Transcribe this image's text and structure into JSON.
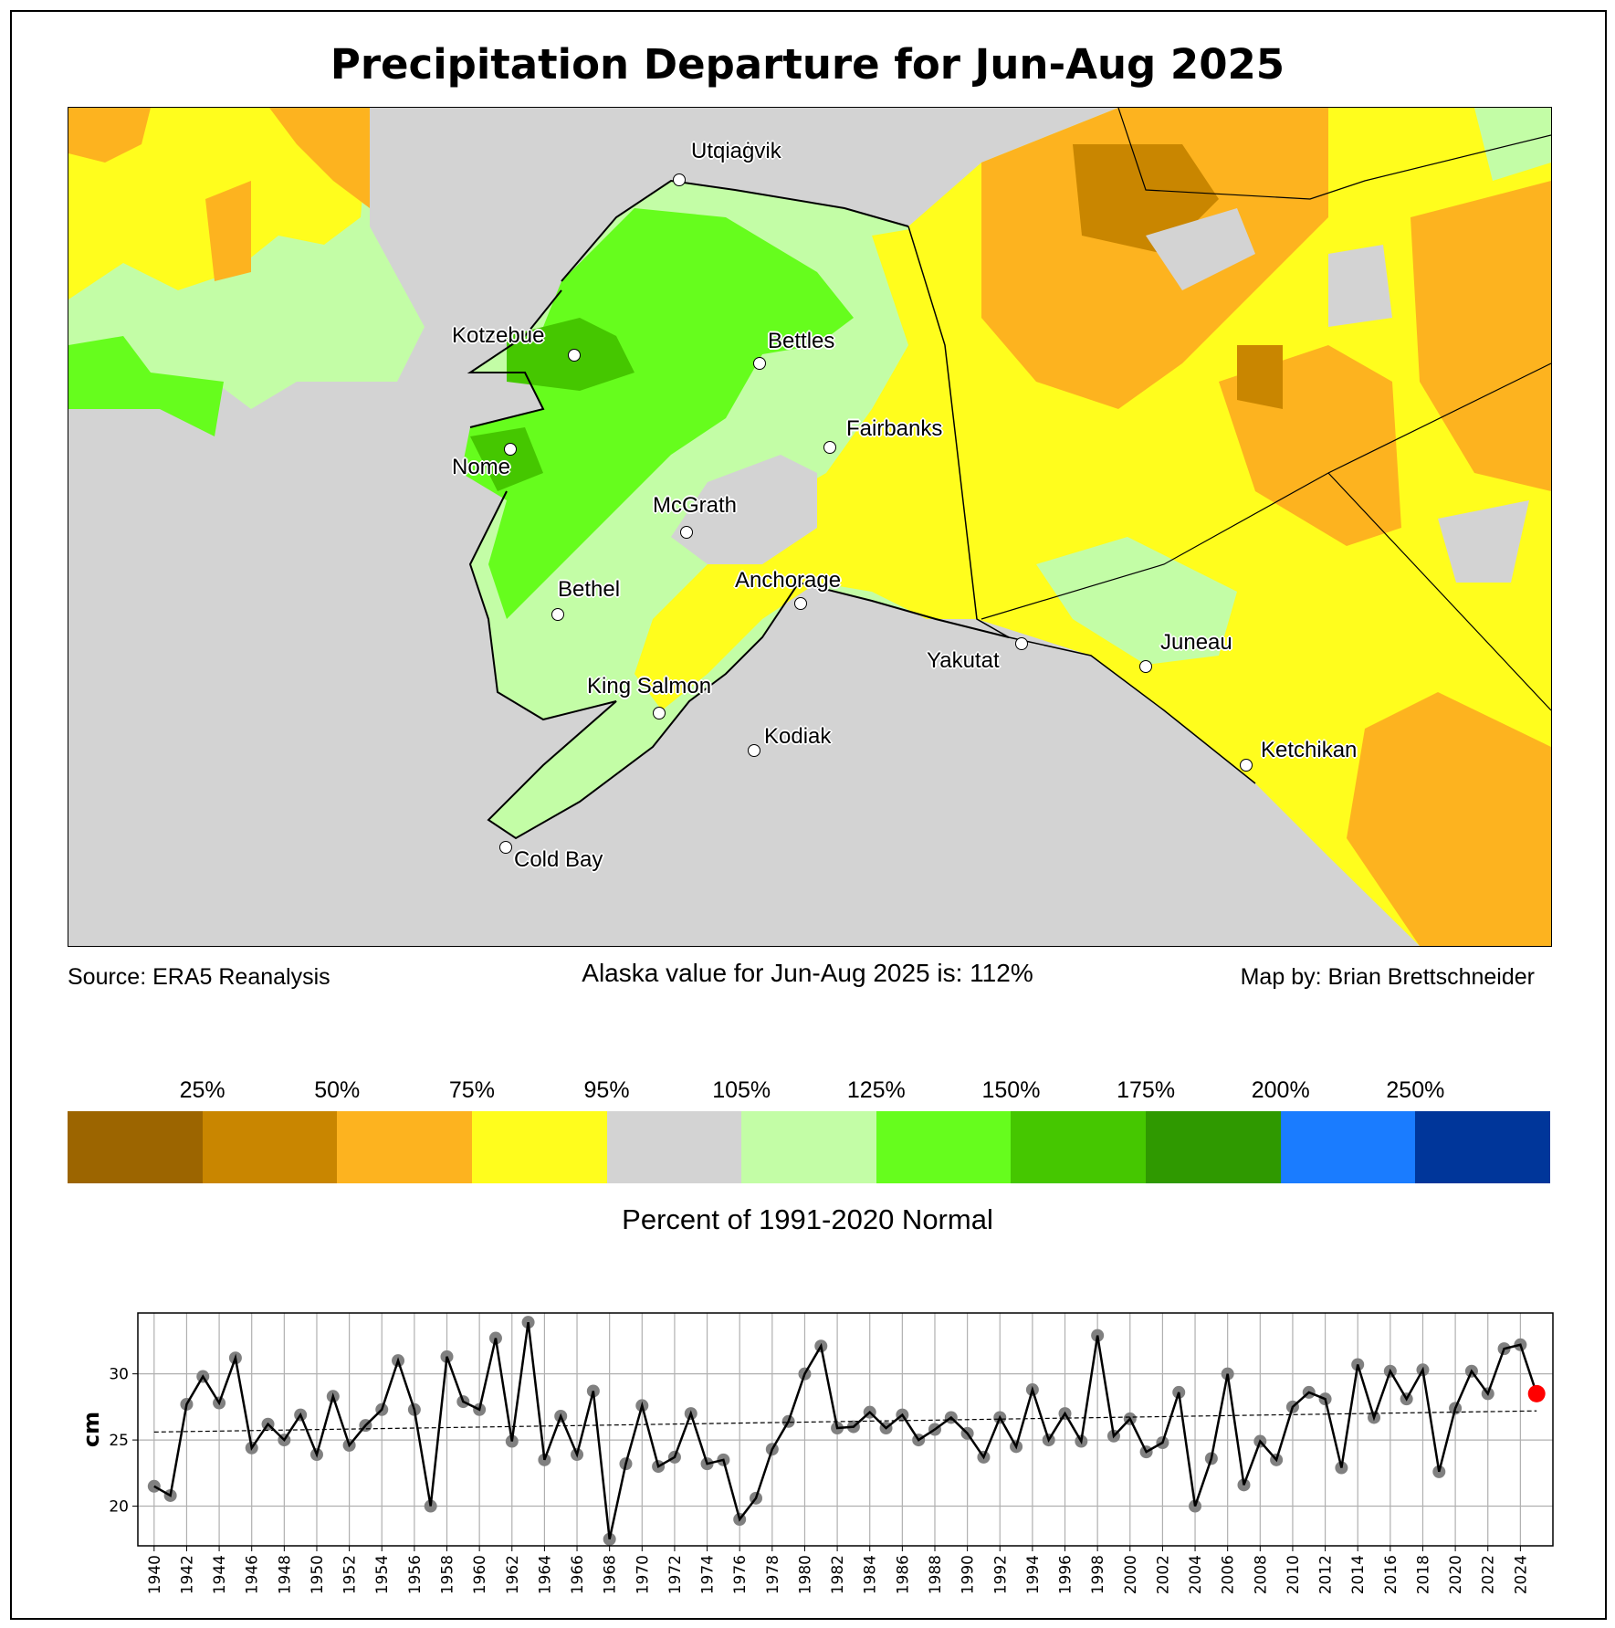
{
  "title": "Precipitation Departure for Jun-Aug 2025",
  "map": {
    "cities": [
      {
        "name": "Utqiaġvik"
      },
      {
        "name": "Kotzebue"
      },
      {
        "name": "Bettles"
      },
      {
        "name": "Nome"
      },
      {
        "name": "Fairbanks"
      },
      {
        "name": "McGrath"
      },
      {
        "name": "Bethel"
      },
      {
        "name": "Anchorage"
      },
      {
        "name": "Yakutat"
      },
      {
        "name": "Juneau"
      },
      {
        "name": "King Salmon"
      },
      {
        "name": "Kodiak"
      },
      {
        "name": "Ketchikan"
      },
      {
        "name": "Cold Bay"
      }
    ]
  },
  "footer": {
    "source": "Source: ERA5 Reanalysis",
    "alaska_value": "Alaska value for Jun-Aug 2025 is: 112%",
    "credit": "Map by: Brian Brettschneider"
  },
  "colorbar": {
    "title": "Percent of 1991-2020 Normal",
    "labels": [
      "25%",
      "50%",
      "75%",
      "95%",
      "105%",
      "125%",
      "150%",
      "175%",
      "200%",
      "250%"
    ],
    "colors": [
      "#9c6500",
      "#c98600",
      "#fdb31f",
      "#fffd1d",
      "#d3d3d3",
      "#c3fda6",
      "#66fd1d",
      "#45c700",
      "#2f9900",
      "#1a7cff",
      "#00369a"
    ]
  },
  "chart_data": {
    "type": "line",
    "title": "",
    "xlabel": "",
    "ylabel": "cm",
    "ylim": [
      17,
      34.6
    ],
    "xlim": [
      1939,
      2026
    ],
    "yticks": [
      20,
      25,
      30
    ],
    "grid": true,
    "x": [
      1940,
      1941,
      1942,
      1943,
      1944,
      1945,
      1946,
      1947,
      1948,
      1949,
      1950,
      1951,
      1952,
      1953,
      1954,
      1955,
      1956,
      1957,
      1958,
      1959,
      1960,
      1961,
      1962,
      1963,
      1964,
      1965,
      1966,
      1967,
      1968,
      1969,
      1970,
      1971,
      1972,
      1973,
      1974,
      1975,
      1976,
      1977,
      1978,
      1979,
      1980,
      1981,
      1982,
      1983,
      1984,
      1985,
      1986,
      1987,
      1988,
      1989,
      1990,
      1991,
      1992,
      1993,
      1994,
      1995,
      1996,
      1997,
      1998,
      1999,
      2000,
      2001,
      2002,
      2003,
      2004,
      2005,
      2006,
      2007,
      2008,
      2009,
      2010,
      2011,
      2012,
      2013,
      2014,
      2015,
      2016,
      2017,
      2018,
      2019,
      2020,
      2021,
      2022,
      2023,
      2024,
      2025
    ],
    "series": [
      {
        "name": "Jun-Aug precipitation",
        "values": [
          21.5,
          20.8,
          27.7,
          29.8,
          27.8,
          31.2,
          24.4,
          26.2,
          25.0,
          26.9,
          23.9,
          28.3,
          24.6,
          26.1,
          27.3,
          31.0,
          27.3,
          20.0,
          31.3,
          27.9,
          27.3,
          32.7,
          24.9,
          33.9,
          23.5,
          26.8,
          23.9,
          28.7,
          17.5,
          23.2,
          27.6,
          23.0,
          23.7,
          27.0,
          23.2,
          23.5,
          19.0,
          20.6,
          24.3,
          26.4,
          30.0,
          32.1,
          25.9,
          26.0,
          27.1,
          25.9,
          26.9,
          25.0,
          25.8,
          26.7,
          25.5,
          23.7,
          26.7,
          24.5,
          28.8,
          25.0,
          27.0,
          24.9,
          32.9,
          25.3,
          26.6,
          24.1,
          24.8,
          28.6,
          20.0,
          23.6,
          30.0,
          21.6,
          24.9,
          23.5,
          27.5,
          28.6,
          28.1,
          22.9,
          30.7,
          26.7,
          30.2,
          28.1,
          30.3,
          22.6,
          27.4,
          30.2,
          28.5,
          31.9,
          32.2,
          28.5
        ]
      }
    ],
    "trend": {
      "start": [
        1940,
        25.6
      ],
      "end": [
        2025,
        27.2
      ]
    },
    "highlight": {
      "x": 2025,
      "color": "#ff0000"
    },
    "marker_color": "#808080",
    "line_color": "#000000"
  }
}
